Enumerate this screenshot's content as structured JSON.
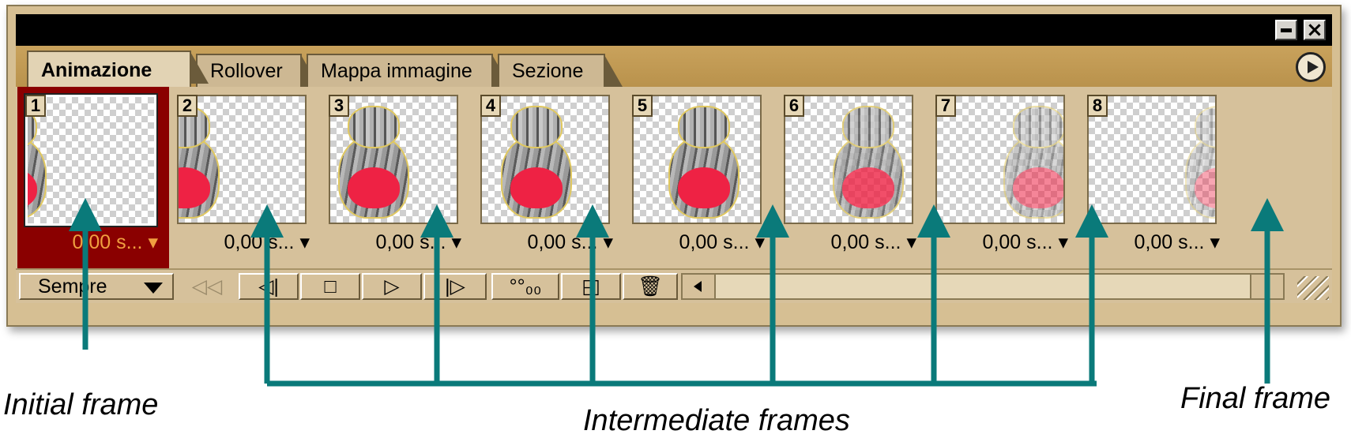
{
  "tabs": [
    {
      "label": "Animazione",
      "active": true
    },
    {
      "label": "Rollover",
      "active": false
    },
    {
      "label": "Mappa immagine",
      "active": false
    },
    {
      "label": "Sezione",
      "active": false
    }
  ],
  "frames": [
    {
      "number": "1",
      "time": "0,00 s...",
      "selected": true
    },
    {
      "number": "2",
      "time": "0,00 s...",
      "selected": false
    },
    {
      "number": "3",
      "time": "0,00 s...",
      "selected": false
    },
    {
      "number": "4",
      "time": "0,00 s...",
      "selected": false
    },
    {
      "number": "5",
      "time": "0,00 s...",
      "selected": false
    },
    {
      "number": "6",
      "time": "0,00 s...",
      "selected": false
    },
    {
      "number": "7",
      "time": "0,00 s...",
      "selected": false
    },
    {
      "number": "8",
      "time": "0,00 s...",
      "selected": false
    }
  ],
  "toolbar": {
    "loop_value": "Sempre",
    "icons": [
      "rewind-icon",
      "previous-frame-icon",
      "stop-icon",
      "play-icon",
      "next-frame-icon",
      "tween-icon",
      "duplicate-frame-icon",
      "trash-icon"
    ]
  },
  "annotations": {
    "initial": "Initial frame",
    "intermediate": "Intermediate frames",
    "final": "Final frame"
  },
  "colors": {
    "palette_bg": "#d6bf93",
    "selected_frame": "#8a0000",
    "arrow": "#0a7a7a",
    "time_selected": "#f0a040"
  }
}
